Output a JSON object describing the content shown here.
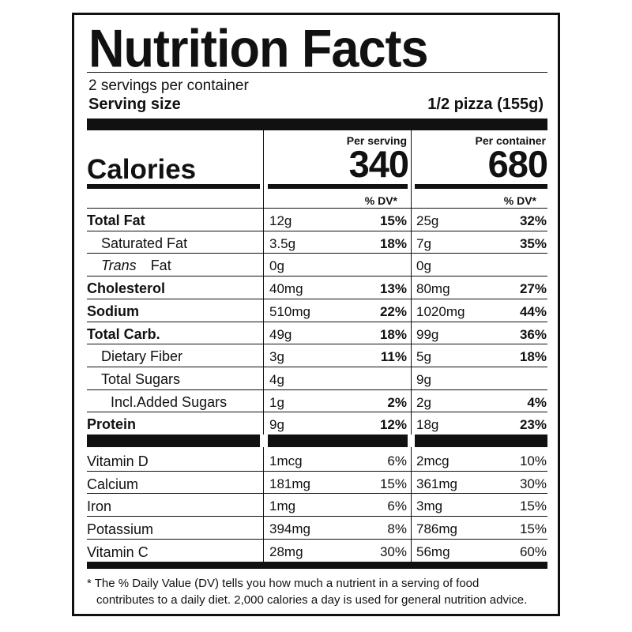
{
  "title": "Nutrition Facts",
  "servings_per_container": "2 servings per container",
  "serving_size_label": "Serving size",
  "serving_size_value": "1/2 pizza (155g)",
  "per_serving_label": "Per serving",
  "per_container_label": "Per container",
  "calories_label": "Calories",
  "calories_per_serving": "340",
  "calories_per_container": "680",
  "dv_header": "% DV*",
  "nutrients": [
    {
      "name": "Total Fat",
      "style": "bold",
      "indent": 0,
      "serving": "12g",
      "serving_dv": "15%",
      "container": "25g",
      "container_dv": "32%"
    },
    {
      "name": "Saturated Fat",
      "style": "normal",
      "indent": 1,
      "serving": "3.5g",
      "serving_dv": "18%",
      "container": "7g",
      "container_dv": "35%"
    },
    {
      "name_italic": "Trans",
      "name": "Fat",
      "style": "normal",
      "indent": 1,
      "serving": "0g",
      "serving_dv": "",
      "container": "0g",
      "container_dv": ""
    },
    {
      "name": "Cholesterol",
      "style": "bold",
      "indent": 0,
      "serving": "40mg",
      "serving_dv": "13%",
      "container": "80mg",
      "container_dv": "27%"
    },
    {
      "name": "Sodium",
      "style": "bold",
      "indent": 0,
      "serving": "510mg",
      "serving_dv": "22%",
      "container": "1020mg",
      "container_dv": "44%"
    },
    {
      "name": "Total Carb.",
      "style": "bold",
      "indent": 0,
      "serving": "49g",
      "serving_dv": "18%",
      "container": "99g",
      "container_dv": "36%"
    },
    {
      "name": "Dietary Fiber",
      "style": "normal",
      "indent": 1,
      "serving": "3g",
      "serving_dv": "11%",
      "container": "5g",
      "container_dv": "18%"
    },
    {
      "name": "Total Sugars",
      "style": "normal",
      "indent": 1,
      "serving": "4g",
      "serving_dv": "",
      "container": "9g",
      "container_dv": ""
    },
    {
      "name": "Incl.Added Sugars",
      "style": "normal",
      "indent": 2,
      "serving": "1g",
      "serving_dv": "2%",
      "container": "2g",
      "container_dv": "4%"
    },
    {
      "name": "Protein",
      "style": "bold",
      "indent": 0,
      "serving": "9g",
      "serving_dv": "12%",
      "container": "18g",
      "container_dv": "23%"
    }
  ],
  "vitamins": [
    {
      "name": "Vitamin D",
      "serving": "1mcg",
      "serving_dv": "6%",
      "container": "2mcg",
      "container_dv": "10%"
    },
    {
      "name": "Calcium",
      "serving": "181mg",
      "serving_dv": "15%",
      "container": "361mg",
      "container_dv": "30%"
    },
    {
      "name": "Iron",
      "serving": "1mg",
      "serving_dv": "6%",
      "container": "3mg",
      "container_dv": "15%"
    },
    {
      "name": "Potassium",
      "serving": "394mg",
      "serving_dv": "8%",
      "container": "786mg",
      "container_dv": "15%"
    },
    {
      "name": "Vitamin C",
      "serving": "28mg",
      "serving_dv": "30%",
      "container": "56mg",
      "container_dv": "60%"
    }
  ],
  "footnote_line1": "* The % Daily Value (DV) tells you how much a nutrient in a serving of food",
  "footnote_line2": "contributes to a daily diet. 2,000 calories a day is used for general nutrition advice."
}
